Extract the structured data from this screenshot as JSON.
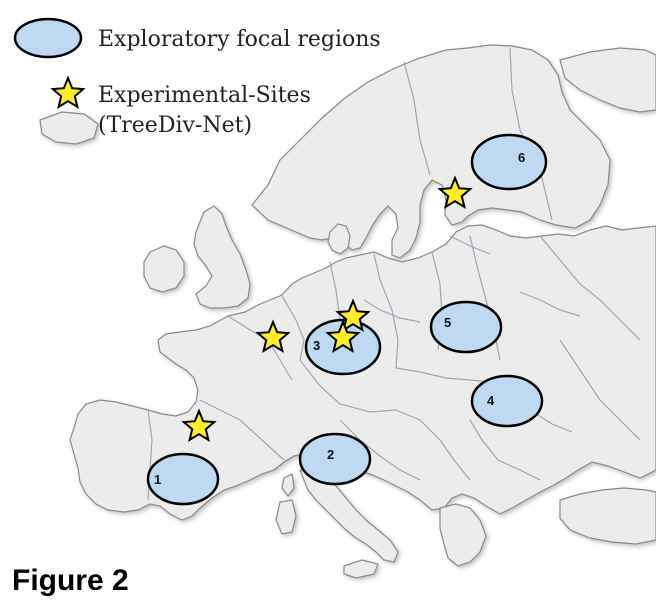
{
  "legend": {
    "focal_label": "Exploratory focal regions",
    "sites_label_line1": "Experimental-Sites",
    "sites_label_line2": "(TreeDiv-Net)"
  },
  "regions": [
    {
      "number": "1",
      "area": "Iberian Peninsula"
    },
    {
      "number": "2",
      "area": "Italy"
    },
    {
      "number": "3",
      "area": "Germany"
    },
    {
      "number": "4",
      "area": "Romania"
    },
    {
      "number": "5",
      "area": "Poland"
    },
    {
      "number": "6",
      "area": "Finland"
    }
  ],
  "sites": [
    {
      "area": "Finland"
    },
    {
      "area": "Germany north"
    },
    {
      "area": "Germany south"
    },
    {
      "area": "Belgium"
    },
    {
      "area": "Pyrenees"
    }
  ],
  "figure_label": "Figure 2",
  "colors": {
    "land": "#ececec",
    "water": "#ffffff",
    "border": "#9aa7b5",
    "coast": "#8a8a8a",
    "region_fill": "#bfd9f2",
    "region_stroke": "#000000",
    "star_fill": "#ffee22",
    "star_stroke": "#000000"
  }
}
